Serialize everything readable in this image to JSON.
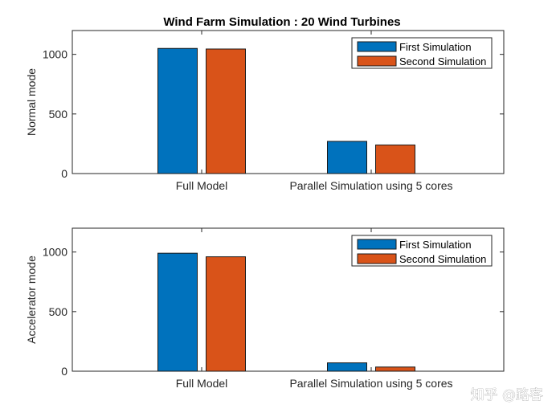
{
  "figure_title": "Wind Farm Simulation : 20 Wind Turbines",
  "watermark": "知乎 @路客",
  "colors": {
    "series1": "#0072BD",
    "series2": "#D95319",
    "axis": "#262626"
  },
  "chart_data": [
    {
      "type": "bar",
      "title": "Wind Farm Simulation : 20 Wind Turbines",
      "ylabel": "Normal mode",
      "xlabel": "",
      "categories": [
        "Full Model",
        "Parallel Simulation using 5 cores"
      ],
      "series": [
        {
          "name": "First Simulation",
          "values": [
            1050,
            270
          ]
        },
        {
          "name": "Second Simulation",
          "values": [
            1045,
            240
          ]
        }
      ],
      "ylim": [
        0,
        1200
      ],
      "yticks": [
        0,
        500,
        1000
      ],
      "legend": "top-right",
      "grid": false
    },
    {
      "type": "bar",
      "title": "",
      "ylabel": "Accelerator mode",
      "xlabel": "",
      "categories": [
        "Full Model",
        "Parallel Simulation using 5 cores"
      ],
      "series": [
        {
          "name": "First Simulation",
          "values": [
            990,
            70
          ]
        },
        {
          "name": "Second Simulation",
          "values": [
            960,
            35
          ]
        }
      ],
      "ylim": [
        0,
        1200
      ],
      "yticks": [
        0,
        500,
        1000
      ],
      "legend": "top-right",
      "grid": false
    }
  ]
}
